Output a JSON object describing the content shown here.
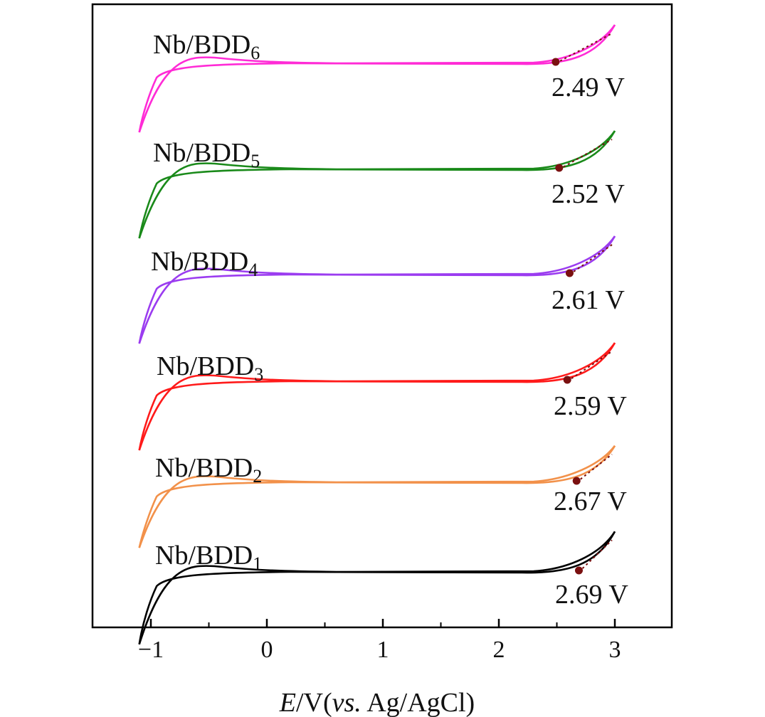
{
  "chart_data": {
    "type": "line",
    "title": "",
    "xlabel": {
      "italic": "E",
      "unit": "/V(",
      "ref_italic": "vs.",
      "ref": " Ag/AgCl)"
    },
    "ylabel": "",
    "xlim": [
      -1.5,
      3.5
    ],
    "xticks": [
      -1,
      0,
      1,
      2,
      3
    ],
    "xtick_labels": [
      "−1",
      "0",
      "1",
      "2",
      "3"
    ],
    "grid": false,
    "y_axis_shown": false,
    "series": [
      {
        "name": "Nb/BDD6",
        "base": "Nb/BDD",
        "subscript": "6",
        "color": "#ff2bd6",
        "onset_potential": 2.49,
        "onset_label": "2.49 V"
      },
      {
        "name": "Nb/BDD5",
        "base": "Nb/BDD",
        "subscript": "5",
        "color": "#1a8a1a",
        "onset_potential": 2.52,
        "onset_label": "2.52 V"
      },
      {
        "name": "Nb/BDD4",
        "base": "Nb/BDD",
        "subscript": "4",
        "color": "#9b3cf0",
        "onset_potential": 2.61,
        "onset_label": "2.61 V"
      },
      {
        "name": "Nb/BDD3",
        "base": "Nb/BDD",
        "subscript": "3",
        "color": "#ff1a1a",
        "onset_potential": 2.59,
        "onset_label": "2.59 V"
      },
      {
        "name": "Nb/BDD2",
        "base": "Nb/BDD",
        "subscript": "2",
        "color": "#f2914a",
        "onset_potential": 2.67,
        "onset_label": "2.67 V"
      },
      {
        "name": "Nb/BDD1",
        "base": "Nb/BDD",
        "subscript": "1",
        "color": "#000000",
        "onset_potential": 2.69,
        "onset_label": "2.69 V"
      }
    ],
    "onset_marker_color": "#7a1010",
    "scan_range": [
      -1.1,
      3.0
    ]
  }
}
